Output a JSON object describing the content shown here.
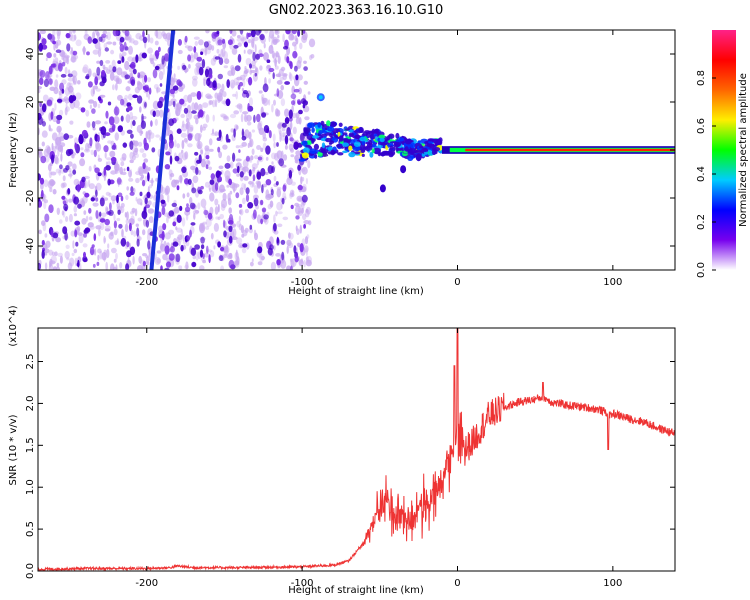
{
  "title": "GN02.2023.363.16.10.G10",
  "colors": {
    "snr_line": "#ee3333",
    "blob_core": "#4400cc",
    "blob_light": "#c8a8f0",
    "streak": "#1a2fd8"
  },
  "chart_data": [
    {
      "type": "heatmap",
      "xlabel": "Height of straight line (km)",
      "ylabel": "Frequency (Hz)",
      "xlim": [
        -270,
        140
      ],
      "ylim": [
        -50,
        50
      ],
      "xticks": [
        -200,
        -100,
        0,
        100
      ],
      "yticks": [
        -40,
        -20,
        0,
        20,
        40
      ],
      "colorbar": {
        "label": "Normalized spectral amplitude",
        "range": [
          0,
          1
        ],
        "ticks": [
          "0.0",
          "0.2",
          "0.4",
          "0.6",
          "0.8"
        ],
        "tick_values": [
          0.0,
          0.2,
          0.4,
          0.6,
          0.8
        ],
        "colormap": [
          "#ffffff",
          "#7700ee",
          "#0000ff",
          "#00ccff",
          "#00ff00",
          "#ffee00",
          "#ff6600",
          "#ff0000",
          "#ff2288"
        ]
      },
      "noise_region_x": [
        -270,
        -95
      ],
      "streaks": [
        {
          "x_at_ymin": -197,
          "x_at_ymax": -183
        }
      ],
      "signal_ridge": {
        "x": [
          -100,
          -90,
          -80,
          -70,
          -60,
          -50,
          -40,
          -30,
          -20,
          -10,
          0,
          20,
          60,
          100,
          140
        ],
        "y": [
          3,
          4,
          5,
          4,
          3,
          3,
          2,
          0,
          1,
          2,
          1,
          0,
          0,
          0,
          0
        ]
      },
      "isolated_spot": {
        "x": -88,
        "y": 22
      }
    },
    {
      "type": "line",
      "xlabel": "Height of straight line (km)",
      "ylabel": "SNR (10 * v/v)",
      "y_multiplier": "(x10^4)",
      "xlim": [
        -270,
        140
      ],
      "ylim": [
        0,
        2.9
      ],
      "xticks": [
        -200,
        -100,
        0,
        100
      ],
      "yticks": [
        0.0,
        0.5,
        1.0,
        1.5,
        2.0,
        2.5
      ],
      "ytick_labels": [
        "0.0",
        "0.5",
        "1.0",
        "1.5",
        "2.0",
        "2.5"
      ],
      "series": [
        {
          "x": [
            -270,
            -240,
            -200,
            -185,
            -180,
            -170,
            -140,
            -100,
            -80,
            -70,
            -62,
            -55,
            -50,
            -45,
            -40,
            -35,
            -30,
            -25,
            -20,
            -15,
            -10,
            -5,
            -2,
            0,
            2,
            5,
            10,
            15,
            20,
            30,
            40,
            50,
            55,
            60,
            70,
            80,
            90,
            95,
            98,
            100,
            110,
            120,
            130,
            140
          ],
          "y": [
            0.02,
            0.03,
            0.03,
            0.04,
            0.06,
            0.04,
            0.04,
            0.05,
            0.07,
            0.12,
            0.3,
            0.55,
            0.75,
            0.85,
            0.65,
            0.7,
            0.55,
            0.8,
            0.7,
            0.9,
            1.05,
            1.35,
            1.5,
            1.6,
            1.55,
            1.45,
            1.55,
            1.7,
            1.85,
            1.95,
            2.02,
            2.05,
            2.08,
            2.02,
            1.98,
            1.96,
            1.93,
            1.9,
            1.85,
            1.88,
            1.82,
            1.78,
            1.7,
            1.64
          ]
        }
      ]
    }
  ]
}
